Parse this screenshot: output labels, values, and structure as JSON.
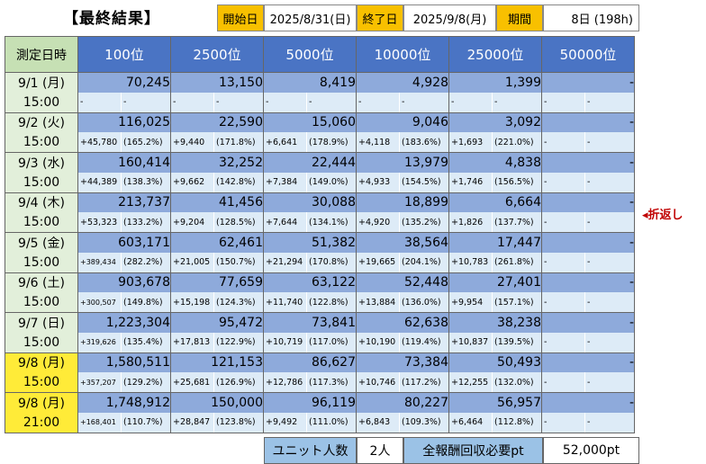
{
  "title": "【最終結果】",
  "header": {
    "start_label": "開始日",
    "start_value": "2025/8/31(日)",
    "end_label": "終了日",
    "end_value": "2025/9/8(月)",
    "period_label": "期間",
    "period_value": "8日 (198h)"
  },
  "table": {
    "date_header": "測定日時",
    "rank_headers": [
      "100位",
      "2500位",
      "5000位",
      "10000位",
      "25000位",
      "50000位"
    ],
    "rows": [
      {
        "date": "9/1 (月)",
        "time": "15:00",
        "highlight": false,
        "values": [
          "70,245",
          "13,150",
          "8,419",
          "4,928",
          "1,399",
          "-"
        ],
        "deltas": [
          [
            "-",
            "-"
          ],
          [
            "-",
            "-"
          ],
          [
            "-",
            "-"
          ],
          [
            "-",
            "-"
          ],
          [
            "-",
            "-"
          ],
          [
            "-",
            "-"
          ]
        ]
      },
      {
        "date": "9/2 (火)",
        "time": "15:00",
        "highlight": false,
        "values": [
          "116,025",
          "22,590",
          "15,060",
          "9,046",
          "3,092",
          "-"
        ],
        "deltas": [
          [
            "+45,780",
            "(165.2%)"
          ],
          [
            "+9,440",
            "(171.8%)"
          ],
          [
            "+6,641",
            "(178.9%)"
          ],
          [
            "+4,118",
            "(183.6%)"
          ],
          [
            "+1,693",
            "(221.0%)"
          ],
          [
            "-",
            "-"
          ]
        ]
      },
      {
        "date": "9/3 (水)",
        "time": "15:00",
        "highlight": false,
        "values": [
          "160,414",
          "32,252",
          "22,444",
          "13,979",
          "4,838",
          "-"
        ],
        "deltas": [
          [
            "+44,389",
            "(138.3%)"
          ],
          [
            "+9,662",
            "(142.8%)"
          ],
          [
            "+7,384",
            "(149.0%)"
          ],
          [
            "+4,933",
            "(154.5%)"
          ],
          [
            "+1,746",
            "(156.5%)"
          ],
          [
            "-",
            "-"
          ]
        ]
      },
      {
        "date": "9/4 (木)",
        "time": "15:00",
        "highlight": false,
        "values": [
          "213,737",
          "41,456",
          "30,088",
          "18,899",
          "6,664",
          "-"
        ],
        "deltas": [
          [
            "+53,323",
            "(133.2%)"
          ],
          [
            "+9,204",
            "(128.5%)"
          ],
          [
            "+7,644",
            "(134.1%)"
          ],
          [
            "+4,920",
            "(135.2%)"
          ],
          [
            "+1,826",
            "(137.7%)"
          ],
          [
            "-",
            "-"
          ]
        ]
      },
      {
        "date": "9/5 (金)",
        "time": "15:00",
        "highlight": false,
        "values": [
          "603,171",
          "62,461",
          "51,382",
          "38,564",
          "17,447",
          "-"
        ],
        "deltas": [
          [
            "+389,434",
            "(282.2%)"
          ],
          [
            "+21,005",
            "(150.7%)"
          ],
          [
            "+21,294",
            "(170.8%)"
          ],
          [
            "+19,665",
            "(204.1%)"
          ],
          [
            "+10,783",
            "(261.8%)"
          ],
          [
            "-",
            "-"
          ]
        ]
      },
      {
        "date": "9/6 (土)",
        "time": "15:00",
        "highlight": false,
        "values": [
          "903,678",
          "77,659",
          "63,122",
          "52,448",
          "27,401",
          "-"
        ],
        "deltas": [
          [
            "+300,507",
            "(149.8%)"
          ],
          [
            "+15,198",
            "(124.3%)"
          ],
          [
            "+11,740",
            "(122.8%)"
          ],
          [
            "+13,884",
            "(136.0%)"
          ],
          [
            "+9,954",
            "(157.1%)"
          ],
          [
            "-",
            "-"
          ]
        ]
      },
      {
        "date": "9/7 (日)",
        "time": "15:00",
        "highlight": false,
        "values": [
          "1,223,304",
          "95,472",
          "73,841",
          "62,638",
          "38,238",
          "-"
        ],
        "deltas": [
          [
            "+319,626",
            "(135.4%)"
          ],
          [
            "+17,813",
            "(122.9%)"
          ],
          [
            "+10,719",
            "(117.0%)"
          ],
          [
            "+10,190",
            "(119.4%)"
          ],
          [
            "+10,837",
            "(139.5%)"
          ],
          [
            "-",
            "-"
          ]
        ]
      },
      {
        "date": "9/8 (月)",
        "time": "15:00",
        "highlight": true,
        "values": [
          "1,580,511",
          "121,153",
          "86,627",
          "73,384",
          "50,493",
          "-"
        ],
        "deltas": [
          [
            "+357,207",
            "(129.2%)"
          ],
          [
            "+25,681",
            "(126.9%)"
          ],
          [
            "+12,786",
            "(117.3%)"
          ],
          [
            "+10,746",
            "(117.2%)"
          ],
          [
            "+12,255",
            "(132.0%)"
          ],
          [
            "-",
            "-"
          ]
        ]
      },
      {
        "date": "9/8 (月)",
        "time": "21:00",
        "highlight": true,
        "values": [
          "1,748,912",
          "150,000",
          "96,119",
          "80,227",
          "56,957",
          "-"
        ],
        "deltas": [
          [
            "+168,401",
            "(110.7%)"
          ],
          [
            "+28,847",
            "(123.8%)"
          ],
          [
            "+9,492",
            "(111.0%)"
          ],
          [
            "+6,843",
            "(109.3%)"
          ],
          [
            "+6,464",
            "(112.8%)"
          ],
          [
            "-",
            "-"
          ]
        ]
      }
    ]
  },
  "note": "◂折返し",
  "footer": {
    "unit_label": "ユニット人数",
    "unit_value": "2人",
    "reward_label": "全報酬回収必要pt",
    "reward_value": "52,000pt"
  },
  "colors": {
    "header_yellow": "#f8c000",
    "rank_header_blue": "#4a74c4",
    "value_cell_blue": "#8eaadb",
    "delta_cell_blue": "#ddebf7",
    "date_green": "#e2efda",
    "date_highlight_yellow": "#ffeb38",
    "note_red": "#c00000"
  }
}
